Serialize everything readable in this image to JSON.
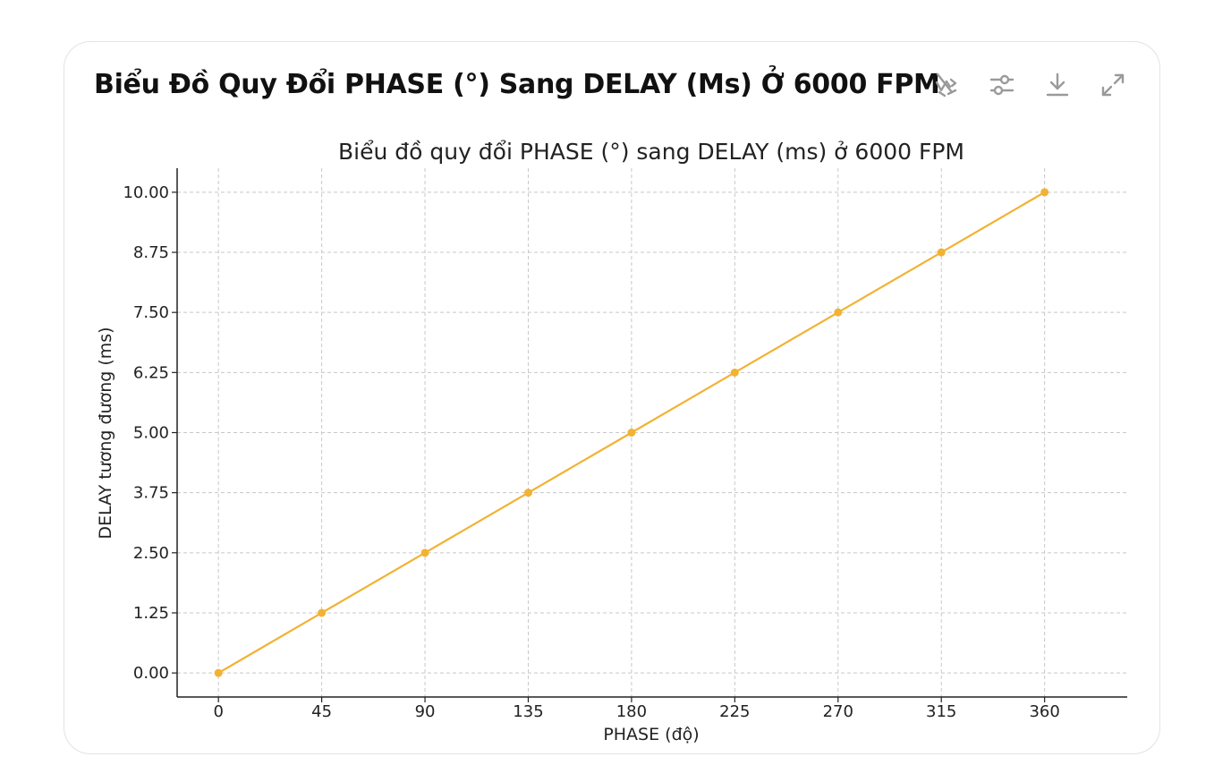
{
  "card": {
    "title": "Biểu Đồ Quy Đổi PHASE (°) Sang DELAY (Ms) Ở 6000 FPM"
  },
  "toolbar": {
    "buttons": [
      {
        "icon": "hide-chart-icon"
      },
      {
        "icon": "settings-sliders-icon"
      },
      {
        "icon": "download-icon"
      },
      {
        "icon": "expand-icon"
      }
    ]
  },
  "chart_data": {
    "type": "line",
    "title": "Biểu đồ quy đổi PHASE (°) sang DELAY (ms) ở 6000 FPM",
    "xlabel": "PHASE (độ)",
    "ylabel": "DELAY tương đương (ms)",
    "x": [
      0,
      45,
      90,
      135,
      180,
      225,
      270,
      315,
      360
    ],
    "series": [
      {
        "values": [
          0,
          1.25,
          2.5,
          3.75,
          5,
          6.25,
          7.5,
          8.75,
          10
        ],
        "color": "#f2b233"
      }
    ],
    "xticks": [
      "0",
      "45",
      "90",
      "135",
      "180",
      "225",
      "270",
      "315",
      "360"
    ],
    "yticks": [
      "0.00",
      "1.25",
      "2.50",
      "3.75",
      "5.00",
      "6.25",
      "7.50",
      "8.75",
      "10.00"
    ],
    "xlim": [
      -18,
      396
    ],
    "ylim": [
      -0.5,
      10.5
    ],
    "grid": true,
    "marker": "circle"
  }
}
